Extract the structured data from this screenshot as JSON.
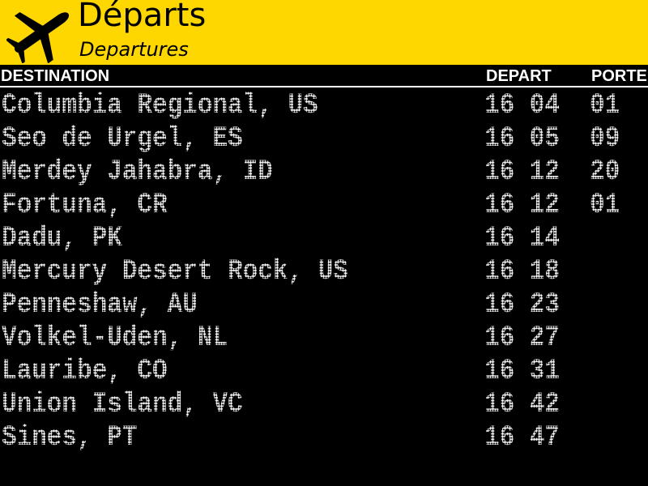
{
  "header": {
    "title": "Départs",
    "subtitle": "Departures",
    "icon": "airplane-takeoff-icon",
    "color": "#FFD700"
  },
  "columns": {
    "destination": "DESTINATION",
    "depart": "DEPART",
    "gate": "PORTE"
  },
  "flights": [
    {
      "destination": "Columbia Regional, US",
      "time": "16 04",
      "gate": "01"
    },
    {
      "destination": "Seo de Urgel, ES",
      "time": "16 05",
      "gate": "09"
    },
    {
      "destination": "Merdey Jahabra, ID",
      "time": "16 12",
      "gate": "20"
    },
    {
      "destination": "Fortuna, CR",
      "time": "16 12",
      "gate": "01"
    },
    {
      "destination": "Dadu, PK",
      "time": "16 14",
      "gate": ""
    },
    {
      "destination": "Mercury Desert Rock, US",
      "time": "16 18",
      "gate": ""
    },
    {
      "destination": "Penneshaw, AU",
      "time": "16 23",
      "gate": ""
    },
    {
      "destination": "Volkel-Uden, NL",
      "time": "16 27",
      "gate": ""
    },
    {
      "destination": "Lauribe, CO",
      "time": "16 31",
      "gate": ""
    },
    {
      "destination": "Union Island, VC",
      "time": "16 42",
      "gate": ""
    },
    {
      "destination": "Sines, PT",
      "time": "16 47",
      "gate": ""
    }
  ]
}
